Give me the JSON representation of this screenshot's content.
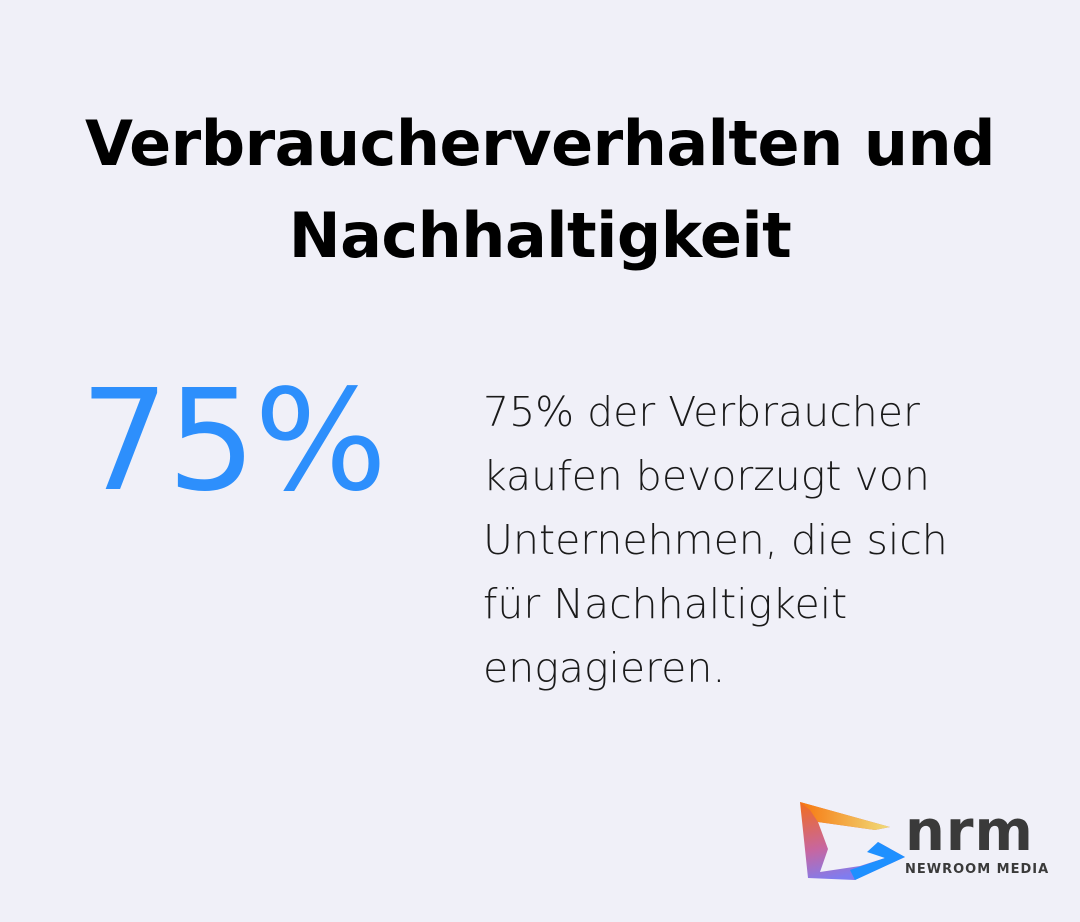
{
  "title": "Verbraucherverhalten und Nachhaltigkeit",
  "stat": {
    "value": "75%",
    "color": "#2d8ffc"
  },
  "description": "75% der Verbraucher kaufen bevorzugt von Unternehmen, die sich für Nachhaltigkeit engagieren.",
  "logo": {
    "wordmark": "nrm",
    "subtitle": "NEWROOM MEDIA"
  }
}
